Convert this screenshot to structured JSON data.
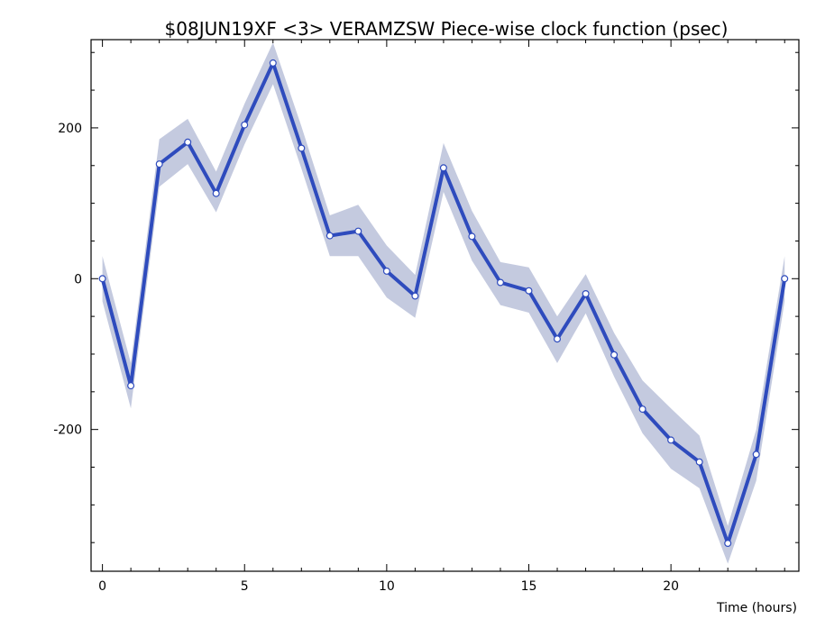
{
  "chart_data": {
    "type": "line",
    "title": "$08JUN19XF <3>  VERAMZSW  Piece-wise clock function (psec)",
    "xlabel": "Time (hours)",
    "ylabel": "",
    "xlim": [
      -0.4,
      24.5
    ],
    "ylim": [
      -388,
      317
    ],
    "xticks": [
      0,
      5,
      10,
      15,
      20
    ],
    "yticks": [
      -200,
      0,
      200
    ],
    "xtick_labels": [
      "0",
      "5",
      "10",
      "15",
      "20"
    ],
    "ytick_labels": [
      "-200",
      "0",
      "200"
    ],
    "grid": false,
    "colors": {
      "line": "#2e4bbd",
      "band": "#c4cadf",
      "marker_fill": "#ffffff"
    },
    "x": [
      0,
      1,
      2,
      3,
      4,
      5,
      6,
      7,
      8,
      9,
      10,
      11,
      12,
      13,
      14,
      15,
      16,
      17,
      18,
      19,
      20,
      21,
      22,
      23,
      24
    ],
    "series": [
      {
        "values": [
          0,
          -142,
          152,
          181,
          113,
          204,
          286,
          173,
          57,
          63,
          10,
          -23,
          147,
          56,
          -5,
          -16,
          -80,
          -20,
          -101,
          -173,
          -214,
          -243,
          -351,
          -233,
          0
        ],
        "band_upper": [
          30,
          -112,
          185,
          212,
          142,
          232,
          313,
          202,
          84,
          98,
          44,
          5,
          180,
          90,
          22,
          15,
          -50,
          6,
          -72,
          -135,
          -172,
          -208,
          -328,
          -200,
          30
        ],
        "band_lower": [
          -30,
          -172,
          122,
          152,
          88,
          178,
          258,
          146,
          30,
          30,
          -25,
          -52,
          115,
          24,
          -35,
          -45,
          -112,
          -46,
          -130,
          -205,
          -252,
          -278,
          -378,
          -268,
          -30
        ]
      }
    ]
  }
}
